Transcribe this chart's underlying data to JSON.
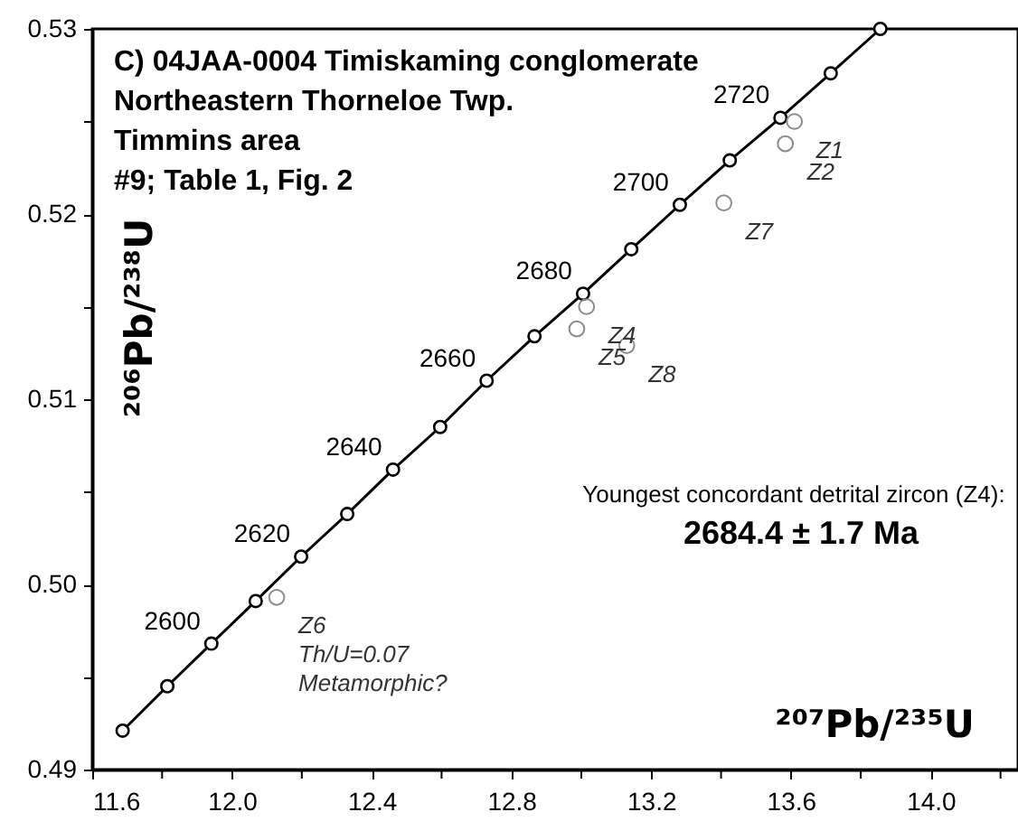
{
  "chart_data": {
    "type": "line",
    "title": "C) 04JAA-0004  Timiskaming conglomerate\nNortheastern Thorneloe Twp.\nTimmins area\n#9; Table 1, Fig. 2",
    "xlabel": "²⁰⁷Pb/²³⁵U",
    "ylabel": "²⁰⁶Pb/²³⁸U",
    "xlim": [
      11.6,
      14.25
    ],
    "ylim": [
      0.49,
      0.53
    ],
    "xticks": [
      11.6,
      {
        "value": 11.8,
        "label": null
      },
      {
        "value": 12,
        "label": "12.0"
      },
      {
        "value": 12.2,
        "label": null
      },
      12.4,
      {
        "value": 12.6,
        "label": null
      },
      12.8,
      {
        "value": 13,
        "label": null
      },
      13.2,
      {
        "value": 13.4,
        "label": null
      },
      13.6,
      {
        "value": 13.8,
        "label": null
      },
      {
        "value": 14,
        "label": "14.0"
      },
      {
        "value": 14.2,
        "label": null
      }
    ],
    "yticks": [
      0.49,
      {
        "value": 0.495,
        "label": null
      },
      {
        "value": 0.5,
        "label": "0.50"
      },
      {
        "value": 0.505,
        "label": null
      },
      0.51,
      {
        "value": 0.515,
        "label": null
      },
      0.52,
      {
        "value": 0.525,
        "label": null
      },
      0.53
    ],
    "grid": false,
    "marker": "circle",
    "series": [
      {
        "color": "#000000",
        "x": [
          11.687,
          11.815,
          11.941,
          12.068,
          12.198,
          12.33,
          12.461,
          12.596,
          12.729,
          12.866,
          13.005,
          13.143,
          13.282,
          13.425,
          13.57,
          13.714,
          13.856
        ],
        "values": [
          0.4921,
          0.4945,
          0.4968,
          0.4991,
          0.5015,
          0.5038,
          0.5062,
          0.5085,
          0.511,
          0.5134,
          0.5157,
          0.5181,
          0.5205,
          0.5229,
          0.5252,
          0.5276,
          0.53
        ]
      },
      {
        "type": "scatter",
        "color": "#8c8c8c",
        "x": [
          13.61,
          13.584,
          13.408,
          13.015,
          12.987,
          13.13,
          12.128
        ],
        "values": [
          0.525,
          0.5238,
          0.5206,
          0.515,
          0.5138,
          0.5129,
          0.4993
        ]
      }
    ],
    "annotations": [
      {
        "text": "2600",
        "x": 11.941,
        "y": 0.4968
      },
      {
        "text": "2620",
        "x": 12.198,
        "y": 0.5015
      },
      {
        "text": "2640",
        "x": 12.461,
        "y": 0.5062
      },
      {
        "text": "2660",
        "x": 12.729,
        "y": 0.511
      },
      {
        "text": "2680",
        "x": 13.005,
        "y": 0.5157
      },
      {
        "text": "2700",
        "x": 13.282,
        "y": 0.5205
      },
      {
        "text": "2720",
        "x": 13.57,
        "y": 0.5252
      },
      {
        "text": "Z1",
        "x": 13.61,
        "y": 0.525
      },
      {
        "text": "Z2",
        "x": 13.584,
        "y": 0.5238
      },
      {
        "text": "Z7",
        "x": 13.408,
        "y": 0.5206
      },
      {
        "text": "Z4",
        "x": 13.015,
        "y": 0.515
      },
      {
        "text": "Z8",
        "x": 13.13,
        "y": 0.5129
      },
      {
        "text": "Z5",
        "x": 12.987,
        "y": 0.5138
      },
      {
        "text": "Z6\nTh/U=0.07\nMetamorphic?",
        "x": 12.128,
        "y": 0.4993
      },
      "Youngest concordant detrital zircon (Z4):",
      "2684.4 ± 1.7 Ma"
    ]
  }
}
